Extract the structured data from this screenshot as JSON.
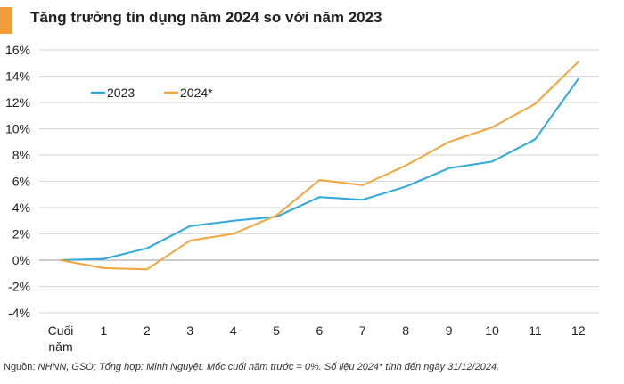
{
  "title": "Tăng trưởng tín dụng năm 2024 so với năm 2023",
  "source": {
    "label": "Nguồn: ",
    "text": "NHNN, GSO; Tổng hợp: Minh Nguyệt. Mốc cuối năm trước = 0%. Số liệu 2024* tính đến ngày 31/12/2024."
  },
  "chart_data": {
    "type": "line",
    "title": "Tăng trưởng tín dụng năm 2024 so với năm 2023",
    "categories": [
      "Cuối năm",
      "1",
      "2",
      "3",
      "4",
      "5",
      "6",
      "7",
      "8",
      "9",
      "10",
      "11",
      "12"
    ],
    "series": [
      {
        "name": "2023",
        "color": "#2ea8dc",
        "values": [
          0,
          0.1,
          0.9,
          2.6,
          3.0,
          3.3,
          4.8,
          4.6,
          5.6,
          7.0,
          7.5,
          9.2,
          13.8
        ]
      },
      {
        "name": "2024*",
        "color": "#f5a53c",
        "values": [
          0,
          -0.6,
          -0.7,
          1.5,
          2.0,
          3.4,
          6.1,
          5.7,
          7.2,
          9.0,
          10.1,
          11.9,
          15.1
        ]
      }
    ],
    "ylim": [
      -4,
      16
    ],
    "yticks": [
      -4,
      -2,
      0,
      2,
      4,
      6,
      8,
      10,
      12,
      14,
      16
    ],
    "ytick_format": "percent",
    "grid": true,
    "legend": "top-left"
  }
}
